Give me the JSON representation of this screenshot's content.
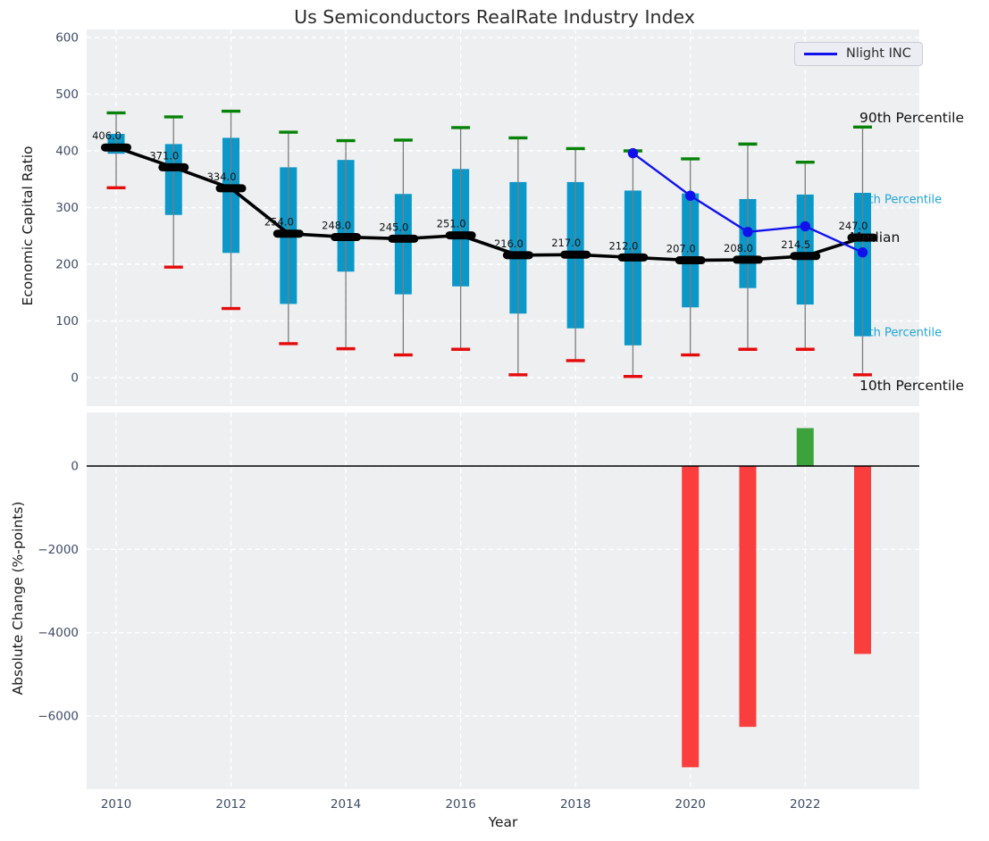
{
  "title": "Us Semiconductors RealRate Industry Index",
  "legend": {
    "label": "Nlight INC"
  },
  "colors": {
    "plot_background": "#edeff1",
    "grid": "#ffffff",
    "box": "#0b97c8",
    "whisker": "#7d7d7d",
    "p90_cap": "#068206",
    "p10_cap": "#e60b0b",
    "median_line": "#000000",
    "nlight_line": "#1111ee",
    "tick_label": "#3e4c66",
    "change_negative": "#fa3e3e",
    "change_positive": "#3ca33c",
    "percentile_label_cyan": "#21a5d6",
    "annotation_black": "#111111",
    "zero_line": "#000000"
  },
  "chart_data": [
    {
      "type": "boxplot-timeseries",
      "title": "Us Semiconductors RealRate Industry Index",
      "xlabel": "Year",
      "ylabel": "Economic Capital Ratio",
      "ylim": [
        0,
        600
      ],
      "grid": true,
      "legend_position": "upper right",
      "yticks": [
        {
          "v": 600,
          "label": "600"
        },
        {
          "v": 500,
          "label": "500"
        },
        {
          "v": 400,
          "label": "400"
        },
        {
          "v": 300,
          "label": "300"
        },
        {
          "v": 200,
          "label": "200"
        },
        {
          "v": 100,
          "label": "100"
        },
        {
          "v": 0,
          "label": "0"
        }
      ],
      "xticks": [
        {
          "v": 2010,
          "label": "2010"
        },
        {
          "v": 2012,
          "label": "2012"
        },
        {
          "v": 2014,
          "label": "2014"
        },
        {
          "v": 2016,
          "label": "2016"
        },
        {
          "v": 2018,
          "label": "2018"
        },
        {
          "v": 2020,
          "label": "2020"
        },
        {
          "v": 2022,
          "label": "2022"
        }
      ],
      "years": [
        2010,
        2011,
        2012,
        2013,
        2014,
        2015,
        2016,
        2017,
        2018,
        2019,
        2020,
        2021,
        2022,
        2023
      ],
      "p90": [
        467,
        460,
        470,
        433,
        418,
        419,
        441,
        423,
        404,
        400,
        386,
        412,
        380,
        442
      ],
      "p75": [
        430,
        412,
        423,
        371,
        384,
        324,
        368,
        345,
        345,
        330,
        325,
        315,
        323,
        326
      ],
      "median": [
        406,
        371,
        334,
        254,
        248,
        245,
        251,
        216,
        217,
        212,
        207,
        208,
        214.5,
        247
      ],
      "p25": [
        395,
        287,
        220,
        130,
        187,
        147,
        161,
        113,
        87,
        57,
        124,
        158,
        129,
        73
      ],
      "p10": [
        335,
        195,
        122,
        60,
        51,
        40,
        50,
        5,
        30,
        2,
        40,
        50,
        50,
        5
      ],
      "median_labels": [
        "406.0",
        "371.0",
        "334.0",
        "254.0",
        "248.0",
        "245.0",
        "251.0",
        "216.0",
        "217.0",
        "212.0",
        "207.0",
        "208.0",
        "214.5",
        "247.0"
      ],
      "nlight": {
        "name": "Nlight INC",
        "years": [
          2019,
          2020,
          2021,
          2022,
          2023
        ],
        "values": [
          396,
          321,
          257,
          267,
          221
        ]
      },
      "annotations": [
        {
          "text": "90th Percentile",
          "x": 962,
          "anchor_value": 458,
          "style": "black",
          "layer": "over"
        },
        {
          "text": "75th Percentile",
          "x": 956,
          "anchor_value": 315,
          "style": "cyan",
          "layer": "under"
        },
        {
          "text": "Median",
          "x": 951,
          "anchor_value": 247,
          "style": "black",
          "layer": "over"
        },
        {
          "text": "25th Percentile",
          "x": 956,
          "anchor_value": 81,
          "style": "cyan",
          "layer": "under"
        },
        {
          "text": "10th Percentile",
          "x": 962,
          "anchor_value": -14,
          "style": "black",
          "layer": "over"
        }
      ]
    },
    {
      "type": "bar",
      "ylabel": "Absolute Change (%-points)",
      "xlabel": "Year",
      "grid": true,
      "yticks": [
        {
          "v": 0,
          "label": "0"
        },
        {
          "v": -2000,
          "label": "−2000"
        },
        {
          "v": -4000,
          "label": "−4000"
        },
        {
          "v": -6000,
          "label": "−6000"
        }
      ],
      "categories": [
        2020,
        2021,
        2022,
        2023
      ],
      "values": [
        -7230,
        -6260,
        910,
        -4510
      ]
    }
  ]
}
